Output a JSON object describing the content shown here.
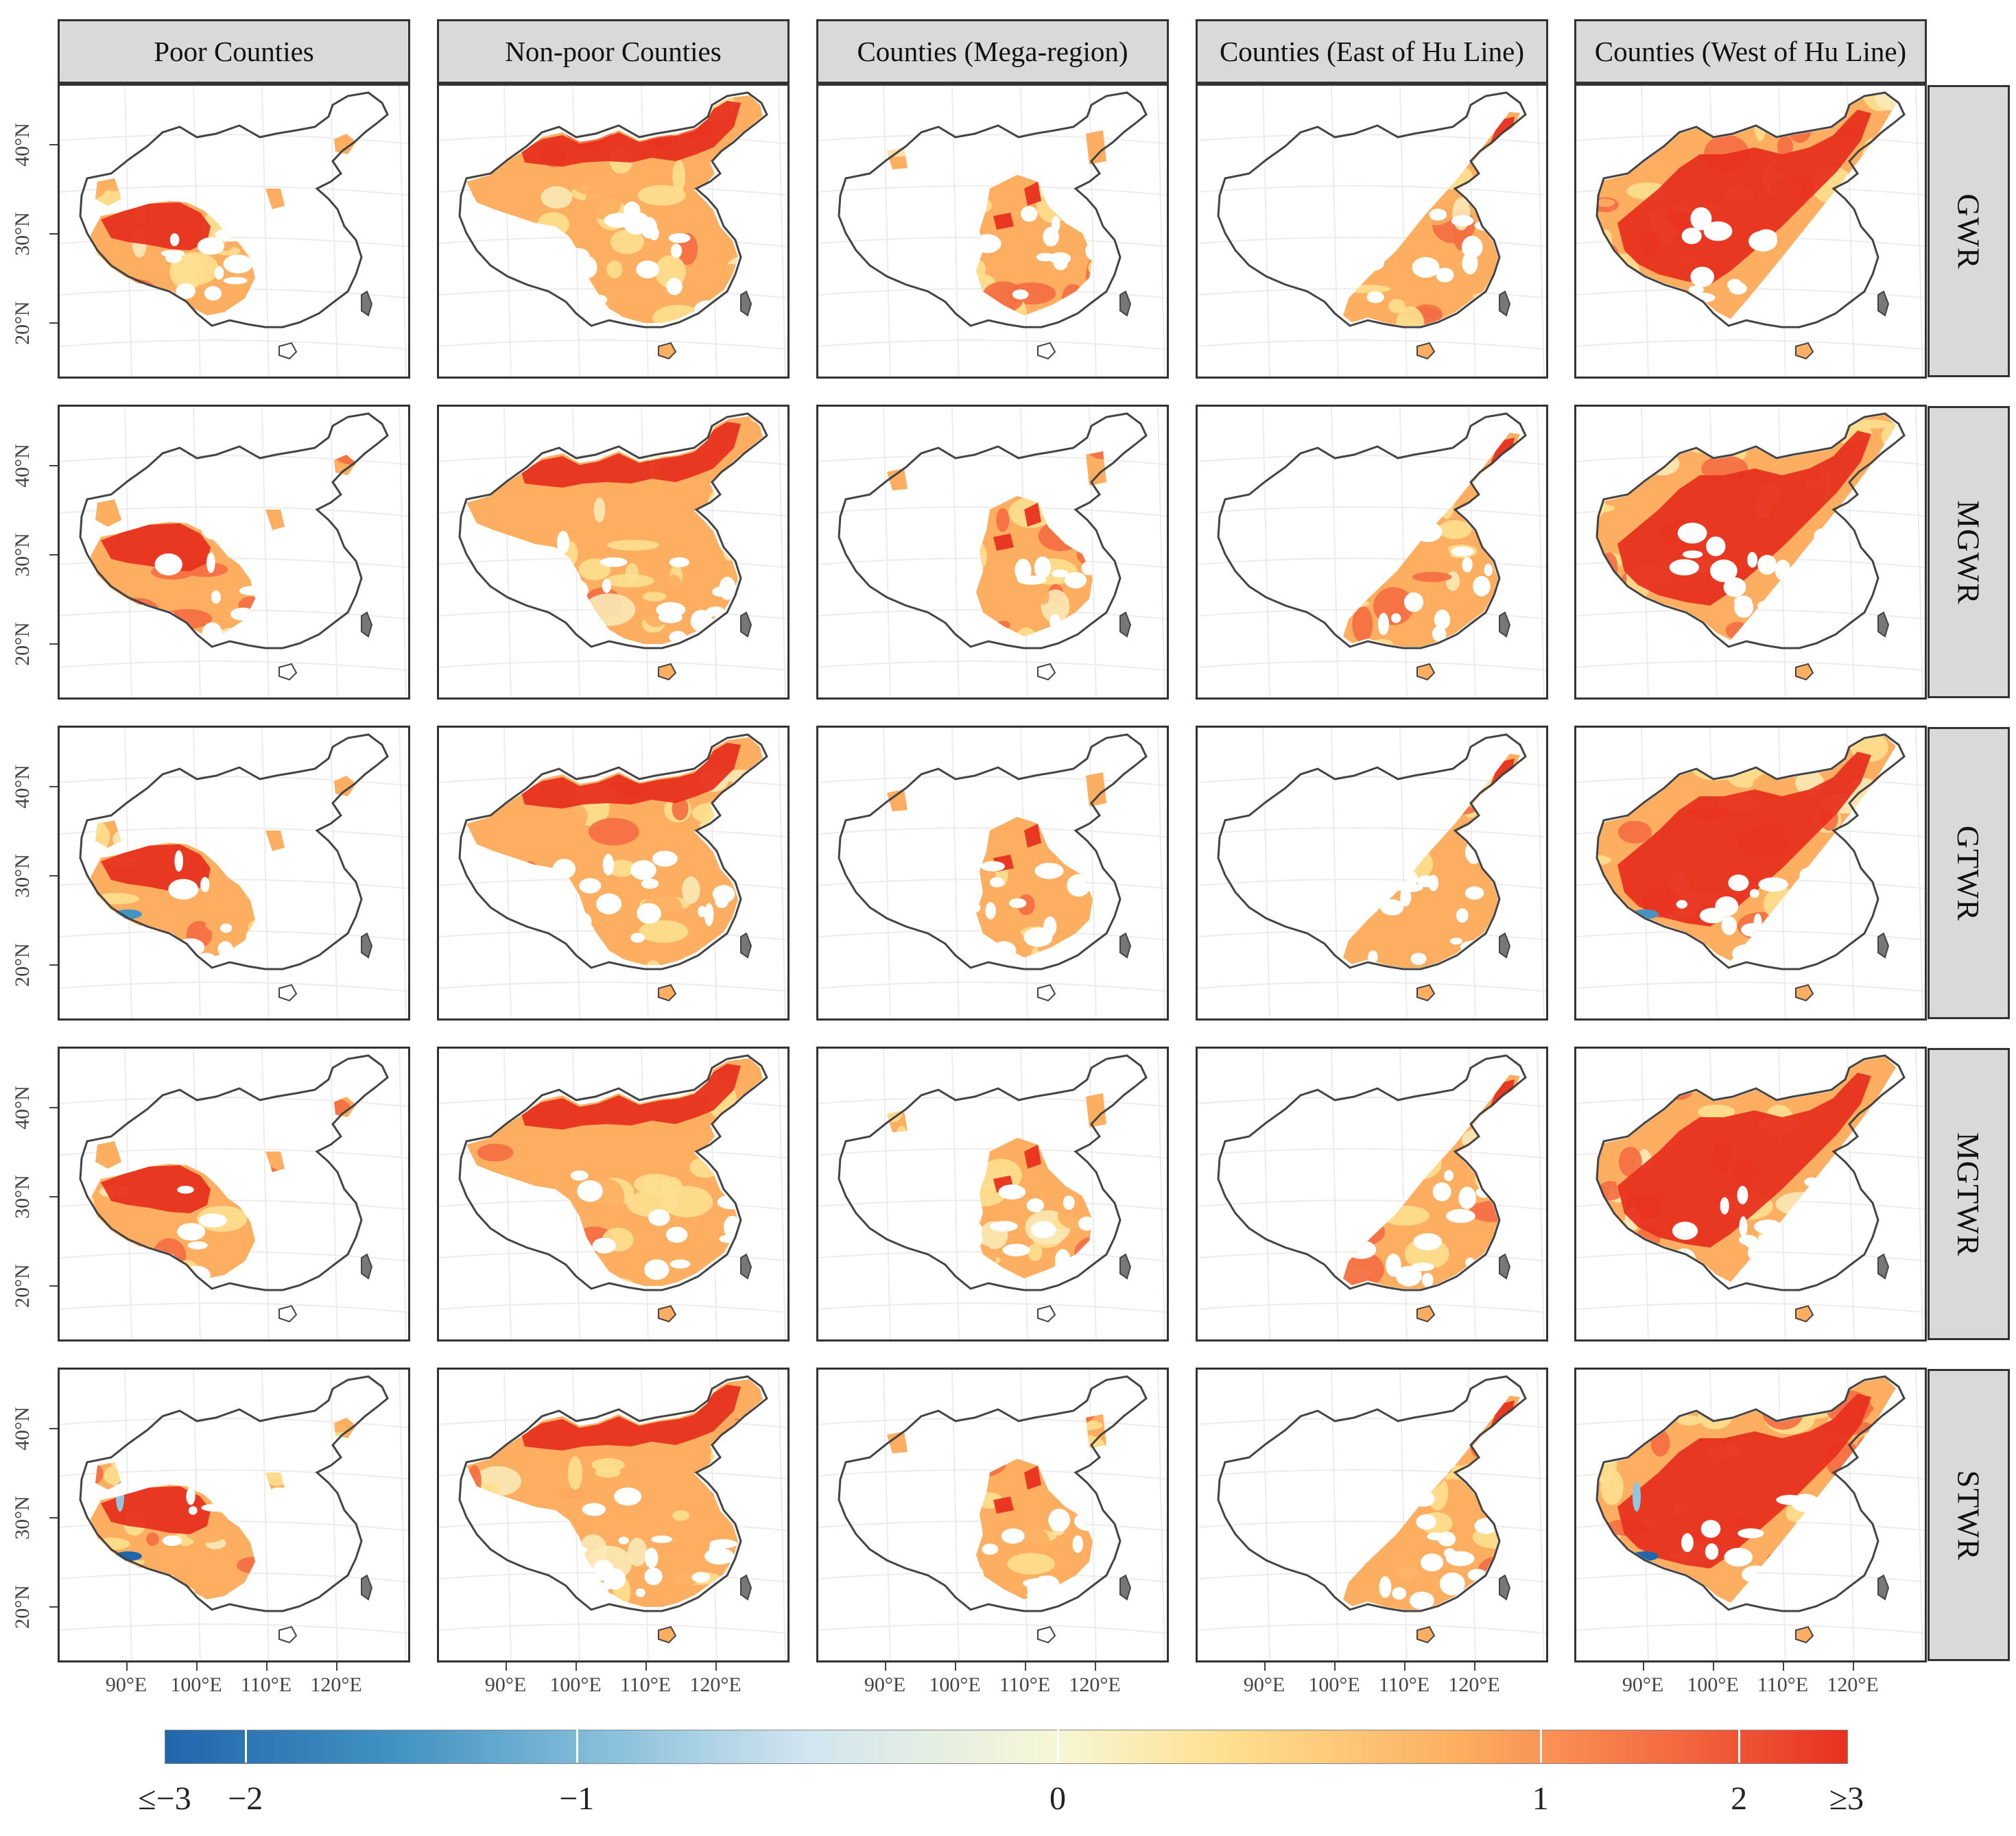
{
  "columns": [
    "Poor Counties",
    "Non-poor Counties",
    "Counties (Mega-region)",
    "Counties (East of Hu Line)",
    "Counties (West of Hu Line)"
  ],
  "rows": [
    "GWR",
    "MGWR",
    "GTWR",
    "MGTWR",
    "STWR"
  ],
  "y_axis_labels": [
    "40°N",
    "30°N",
    "20°N"
  ],
  "x_axis_labels": [
    "90°E",
    "100°E",
    "110°E",
    "120°E"
  ],
  "colorbar": {
    "labels": [
      "≤−3",
      "−2",
      "−1",
      "0",
      "1",
      "2",
      "≥3"
    ],
    "colors": [
      "#2166ac",
      "#4393c3",
      "#92c5de",
      "#d1e5f0",
      "#f7f7d6",
      "#fee090",
      "#fdae61",
      "#f46d43",
      "#e8311f"
    ]
  }
}
